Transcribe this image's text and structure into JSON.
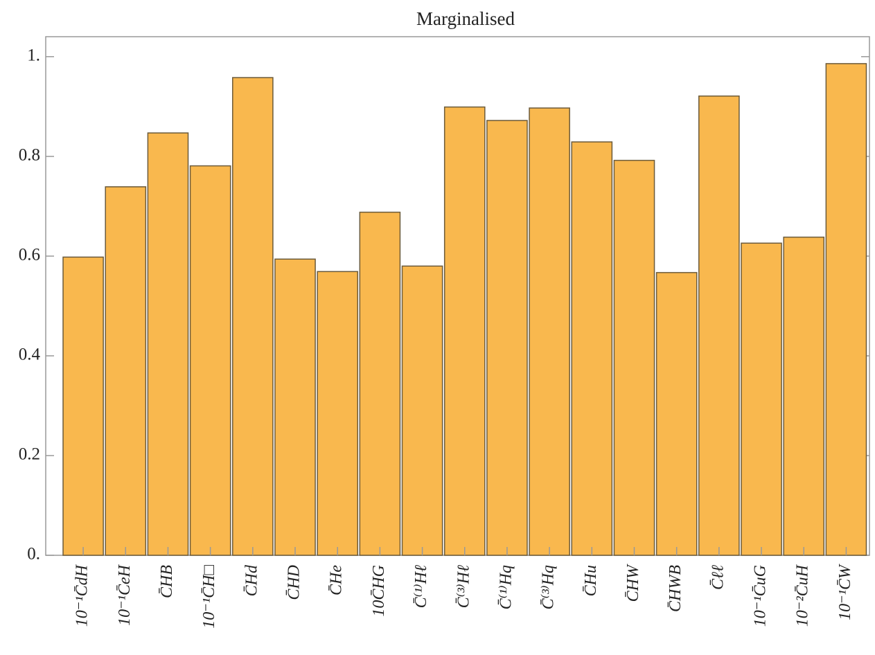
{
  "chart_data": {
    "type": "bar",
    "title": "Marginalised",
    "categories": [
      "10⁻¹C̄dH",
      "10⁻¹C̄eH",
      "C̄HB",
      "10⁻¹C̄H□",
      "C̄Hd",
      "C̄HD",
      "C̄He",
      "10C̄HG",
      "C̄⁽¹⁾Hℓ",
      "C̄⁽³⁾Hℓ",
      "C̄⁽¹⁾Hq",
      "C̄⁽³⁾Hq",
      "C̄Hu",
      "C̄HW",
      "C̄HWB",
      "C̄ℓℓ",
      "10⁻¹C̄uG",
      "10⁻²C̄uH",
      "10⁻¹C̄W"
    ],
    "values": [
      0.598,
      0.739,
      0.847,
      0.781,
      0.958,
      0.594,
      0.569,
      0.688,
      0.58,
      0.899,
      0.872,
      0.897,
      0.829,
      0.792,
      0.567,
      0.921,
      0.626,
      0.638,
      0.986
    ],
    "color": "#f9b84e",
    "ylim": [
      0,
      1.04
    ],
    "yticks": [
      {
        "value": 0,
        "label": "0."
      },
      0.2,
      0.4,
      0.6,
      0.8,
      {
        "value": 1,
        "label": "1."
      }
    ]
  }
}
